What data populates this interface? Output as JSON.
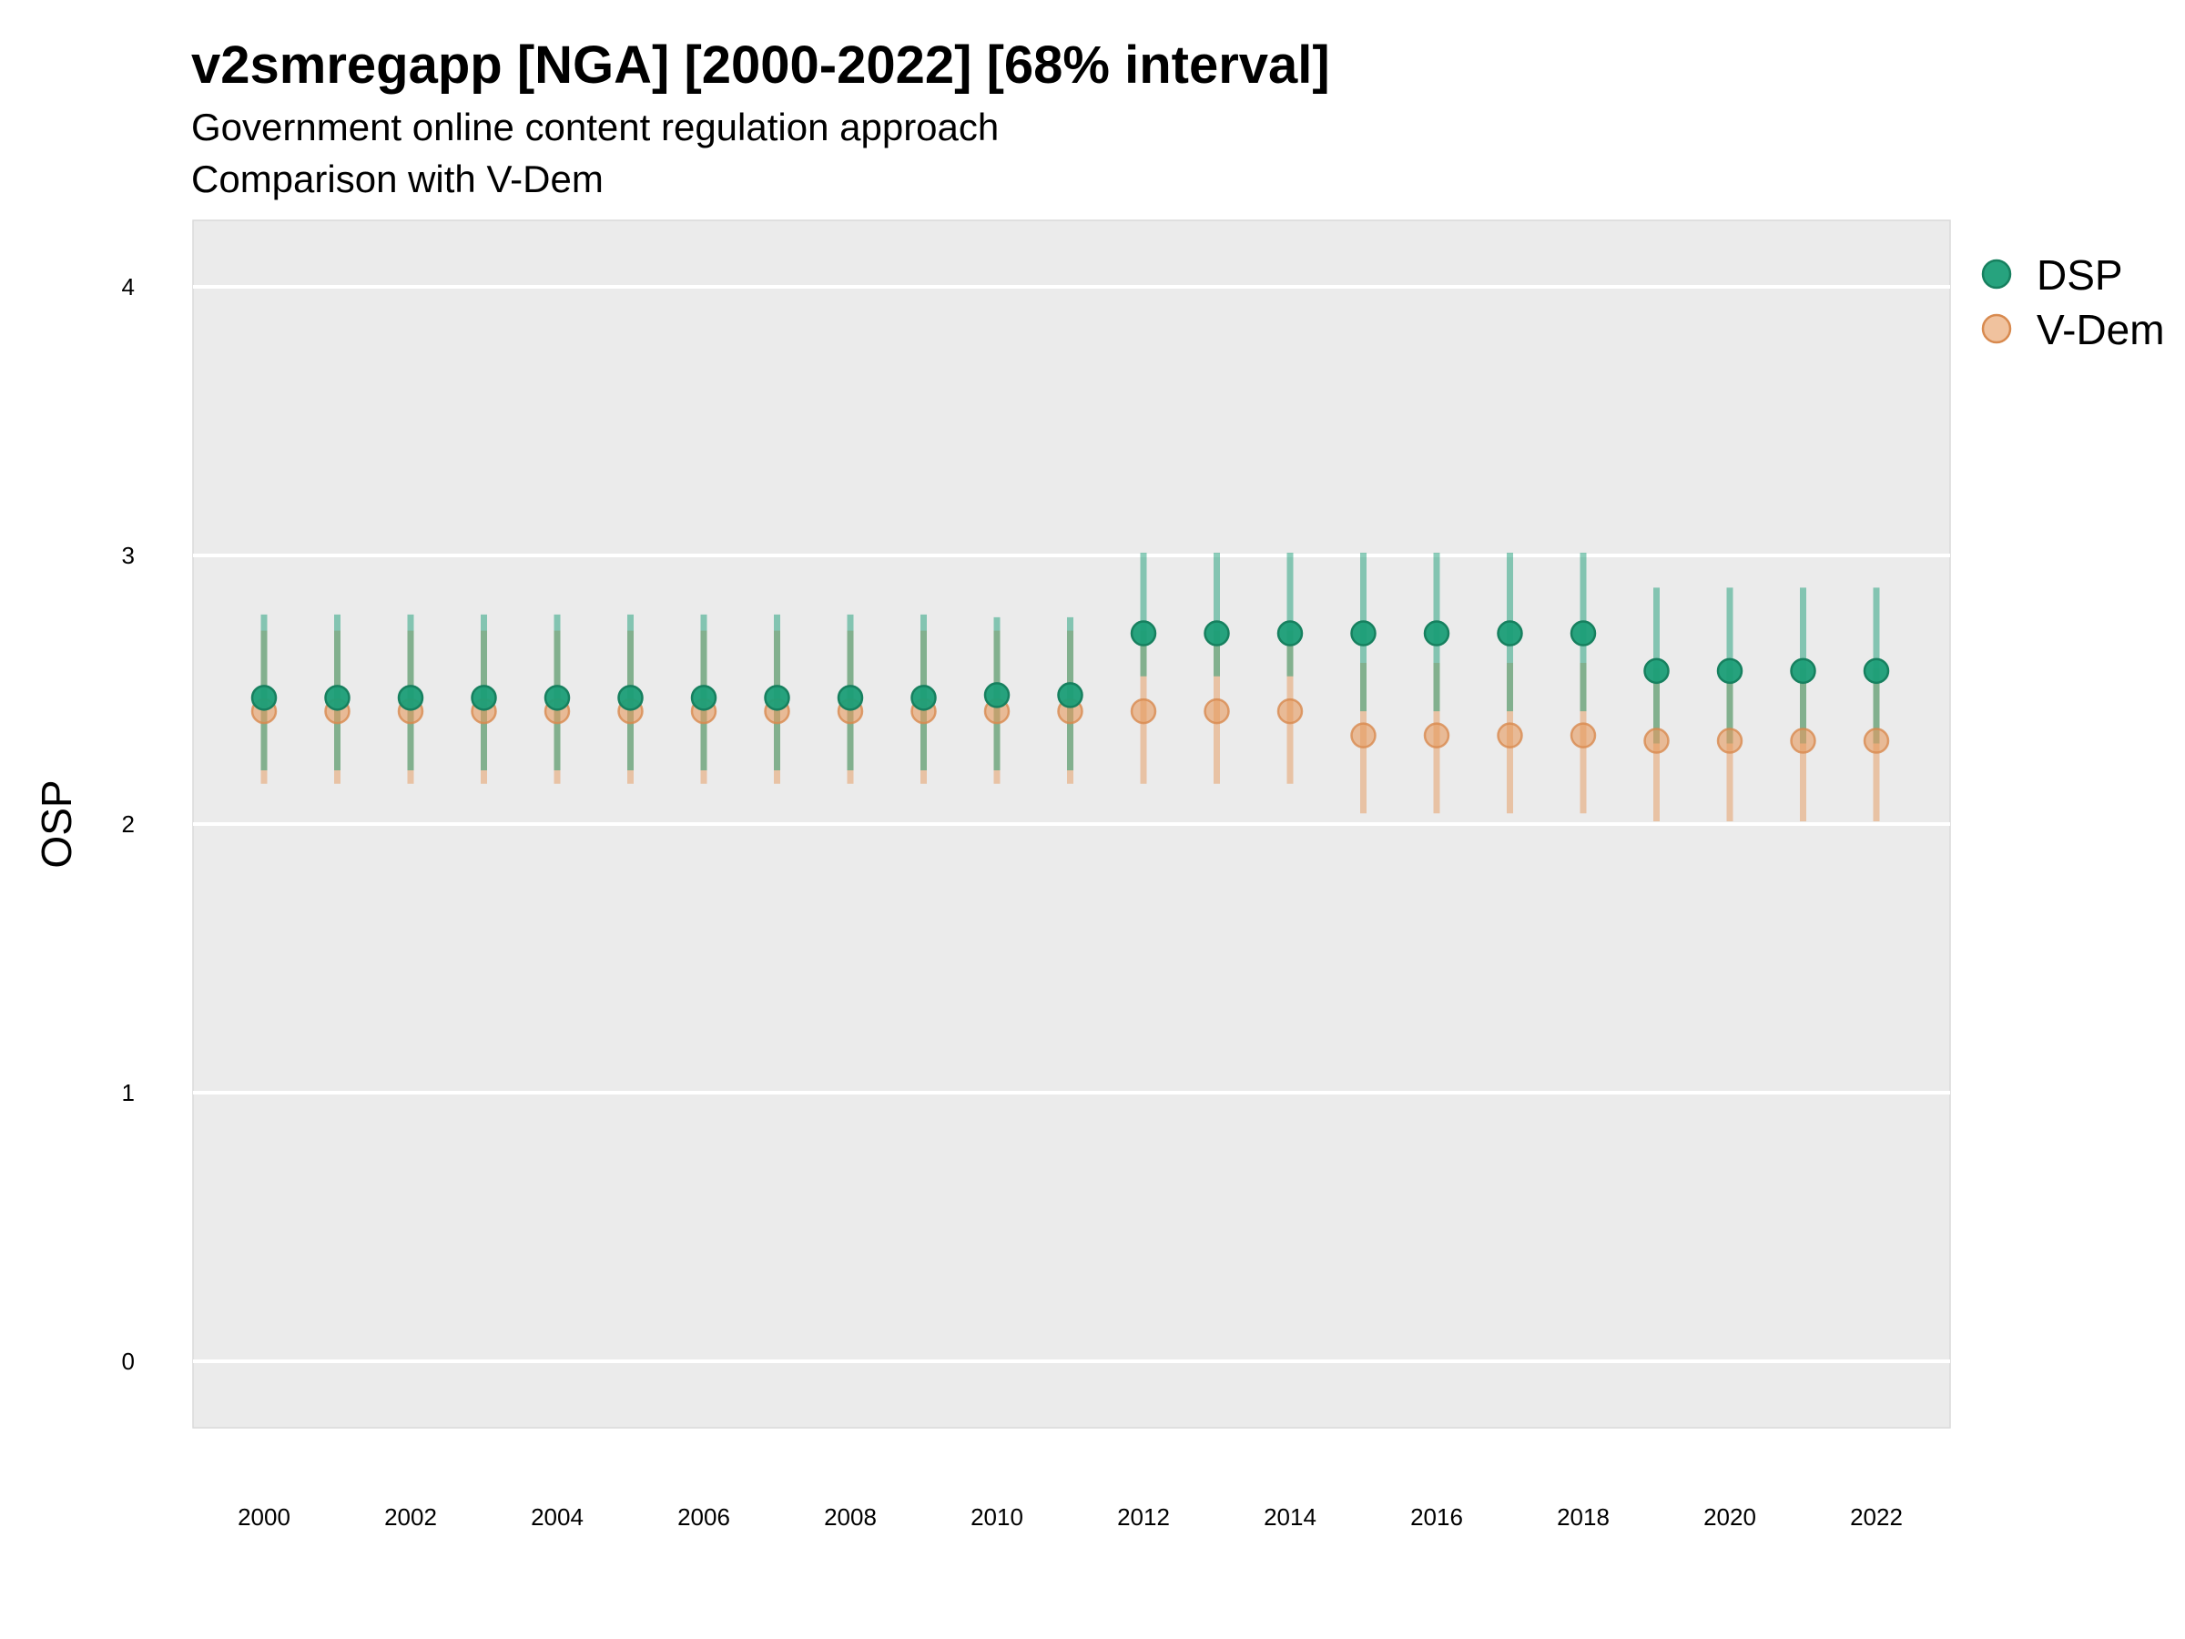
{
  "chart_data": {
    "type": "scatter",
    "title": "v2smregapp [NGA] [2000-2022] [68% interval]",
    "subtitle": [
      "Government online content regulation approach",
      "Comparison with V-Dem"
    ],
    "xlabel": "",
    "ylabel": "OSP",
    "ylim": [
      -0.25,
      4.25
    ],
    "yticks": [
      0,
      1,
      2,
      3,
      4
    ],
    "xlim": [
      1999,
      2023
    ],
    "xticks": [
      2000,
      2002,
      2004,
      2006,
      2008,
      2010,
      2012,
      2014,
      2016,
      2018,
      2020,
      2022
    ],
    "grid": true,
    "legend_position": "right",
    "series": [
      {
        "name": "DSP",
        "color": "#1b9e77",
        "x": [
          2000,
          2001,
          2002,
          2003,
          2004,
          2005,
          2006,
          2007,
          2008,
          2009,
          2010,
          2011,
          2012,
          2013,
          2014,
          2015,
          2016,
          2017,
          2018,
          2019,
          2020,
          2021,
          2022
        ],
        "y": [
          2.47,
          2.47,
          2.47,
          2.47,
          2.47,
          2.47,
          2.47,
          2.47,
          2.47,
          2.47,
          2.48,
          2.48,
          2.71,
          2.71,
          2.71,
          2.71,
          2.71,
          2.71,
          2.71,
          2.57,
          2.57,
          2.57,
          2.57
        ],
        "lower": [
          2.2,
          2.2,
          2.2,
          2.2,
          2.2,
          2.2,
          2.2,
          2.2,
          2.2,
          2.2,
          2.2,
          2.2,
          2.55,
          2.55,
          2.55,
          2.42,
          2.42,
          2.42,
          2.42,
          2.3,
          2.3,
          2.3,
          2.3
        ],
        "upper": [
          2.78,
          2.78,
          2.78,
          2.78,
          2.78,
          2.78,
          2.78,
          2.78,
          2.78,
          2.78,
          2.77,
          2.77,
          3.01,
          3.01,
          3.01,
          3.01,
          3.01,
          3.01,
          3.01,
          2.88,
          2.88,
          2.88,
          2.88
        ]
      },
      {
        "name": "V-Dem",
        "color": "#e69a5e",
        "x": [
          2000,
          2001,
          2002,
          2003,
          2004,
          2005,
          2006,
          2007,
          2008,
          2009,
          2010,
          2011,
          2012,
          2013,
          2014,
          2015,
          2016,
          2017,
          2018,
          2019,
          2020,
          2021,
          2022
        ],
        "y": [
          2.42,
          2.42,
          2.42,
          2.42,
          2.42,
          2.42,
          2.42,
          2.42,
          2.42,
          2.42,
          2.42,
          2.42,
          2.42,
          2.42,
          2.42,
          2.33,
          2.33,
          2.33,
          2.33,
          2.31,
          2.31,
          2.31,
          2.31
        ],
        "lower": [
          2.15,
          2.15,
          2.15,
          2.15,
          2.15,
          2.15,
          2.15,
          2.15,
          2.15,
          2.15,
          2.15,
          2.15,
          2.15,
          2.15,
          2.15,
          2.04,
          2.04,
          2.04,
          2.04,
          2.01,
          2.01,
          2.01,
          2.01
        ],
        "upper": [
          2.72,
          2.72,
          2.72,
          2.72,
          2.72,
          2.72,
          2.72,
          2.72,
          2.72,
          2.72,
          2.72,
          2.72,
          2.72,
          2.72,
          2.72,
          2.6,
          2.6,
          2.6,
          2.6,
          2.58,
          2.58,
          2.58,
          2.58
        ]
      }
    ]
  }
}
